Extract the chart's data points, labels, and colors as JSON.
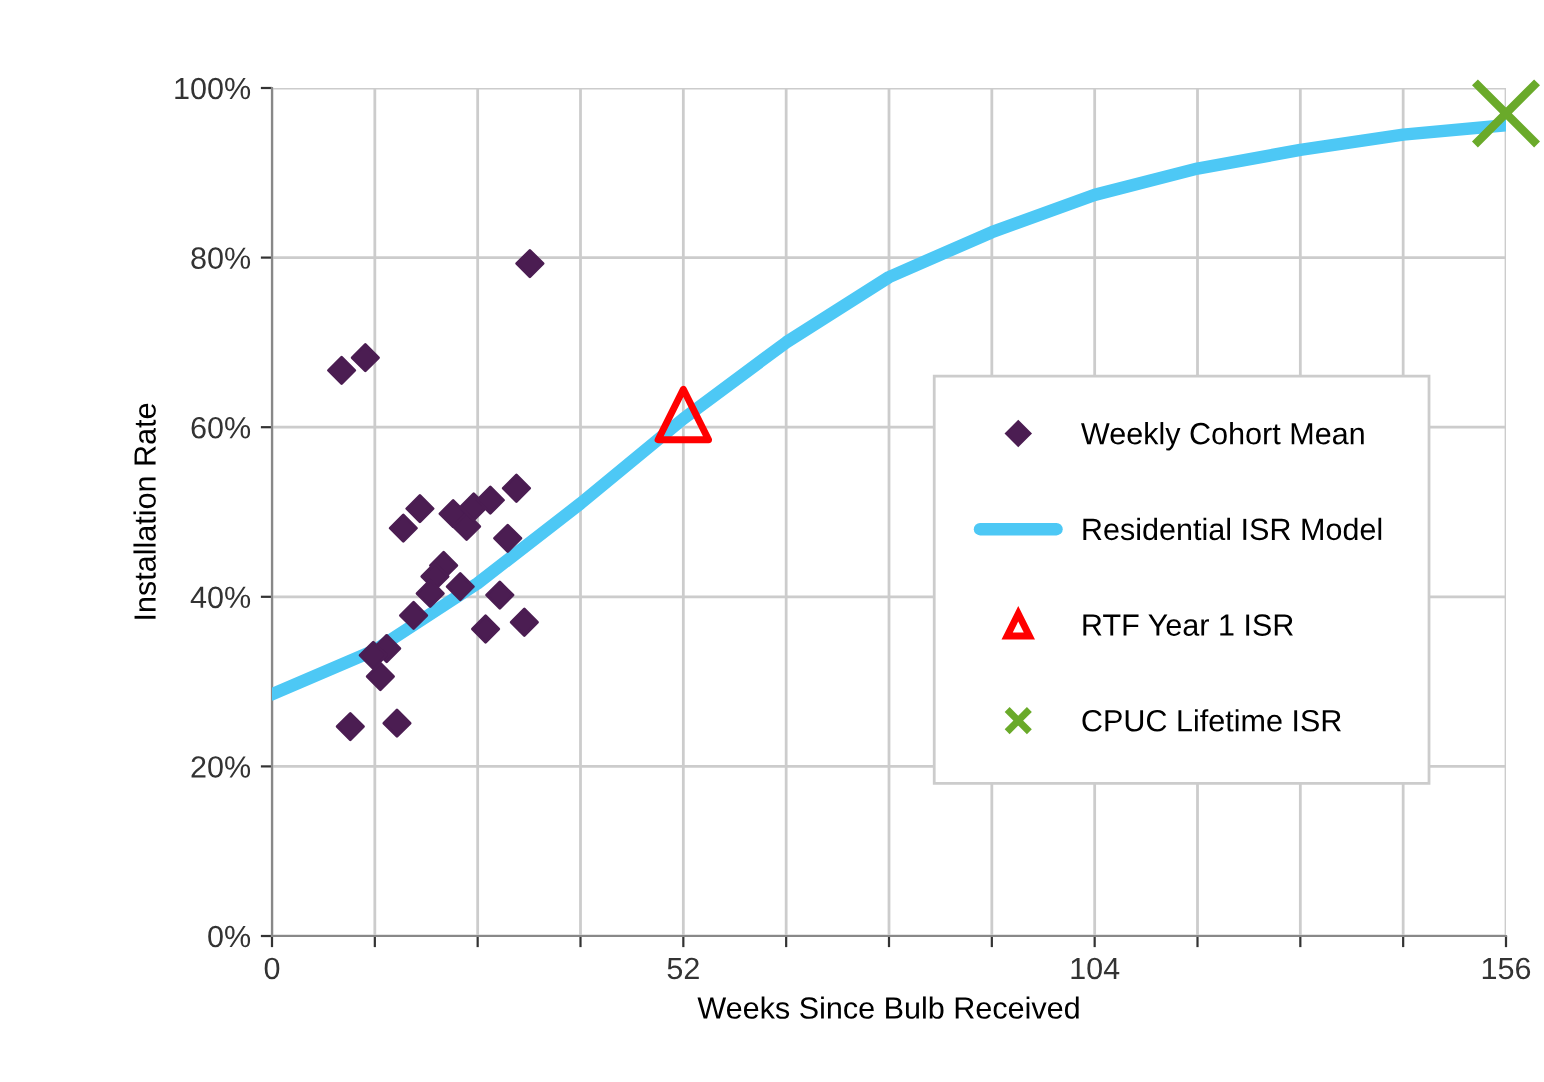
{
  "chart_data": {
    "type": "scatter",
    "xlabel": "Weeks Since Bulb Received",
    "ylabel": "Installation Rate",
    "xlim": [
      0,
      156
    ],
    "xticks": [
      0,
      {
        "value": 13,
        "label": null
      },
      {
        "value": 26,
        "label": null
      },
      {
        "value": 39,
        "label": null
      },
      52,
      {
        "value": 65,
        "label": null
      },
      {
        "value": 78,
        "label": null
      },
      {
        "value": 91,
        "label": null
      },
      104,
      {
        "value": 117,
        "label": null
      },
      {
        "value": 130,
        "label": null
      },
      {
        "value": 143,
        "label": null
      },
      156
    ],
    "ylim": [
      0,
      100
    ],
    "yticks": [
      {
        "value": 0,
        "label": "0%"
      },
      {
        "value": 20,
        "label": "20%"
      },
      {
        "value": 40,
        "label": "40%"
      },
      {
        "value": 60,
        "label": "60%"
      },
      {
        "value": 80,
        "label": "80%"
      },
      {
        "value": 100,
        "label": "100%"
      }
    ],
    "grid": true,
    "legend": "right",
    "series": [
      {
        "name": "Weekly Cohort Mean",
        "marker": "diamond",
        "color": "#4b1d52",
        "x": [
          32.6,
          8.8,
          11.8,
          18.7,
          16.6,
          22.9,
          24.6,
          25.5,
          27.6,
          30.9,
          29.8,
          21.7,
          20.6,
          20.0,
          23.8,
          28.8,
          17.9,
          27.0,
          31.9,
          14.5,
          12.8,
          13.7,
          9.9,
          15.8
        ],
        "values": [
          79.3,
          66.7,
          68.2,
          50.4,
          48.1,
          49.8,
          48.3,
          50.6,
          51.4,
          52.8,
          46.9,
          43.7,
          42.4,
          40.4,
          41.2,
          40.2,
          37.8,
          36.2,
          37.0,
          33.9,
          33.1,
          30.6,
          24.7,
          25.1
        ]
      },
      {
        "name": "Residential ISR Model",
        "type": "line",
        "marker": "none",
        "line_style": "solid",
        "color": "#4dc8f5",
        "x": [
          0,
          13,
          26,
          39,
          52,
          65,
          78,
          91,
          104,
          117,
          130,
          143,
          156
        ],
        "values": [
          28.5,
          33.7,
          41.6,
          51,
          61,
          70,
          77.7,
          83,
          87.4,
          90.5,
          92.7,
          94.5,
          95.6
        ]
      },
      {
        "name": "RTF Year 1 ISR",
        "marker": "triangle",
        "color": "#ff0000",
        "x": [
          52
        ],
        "values": [
          61.5
        ]
      },
      {
        "name": "CPUC Lifetime ISR",
        "marker": "cross",
        "color": "#6aaa2a",
        "x": [
          156
        ],
        "values": [
          97.0
        ]
      }
    ]
  }
}
